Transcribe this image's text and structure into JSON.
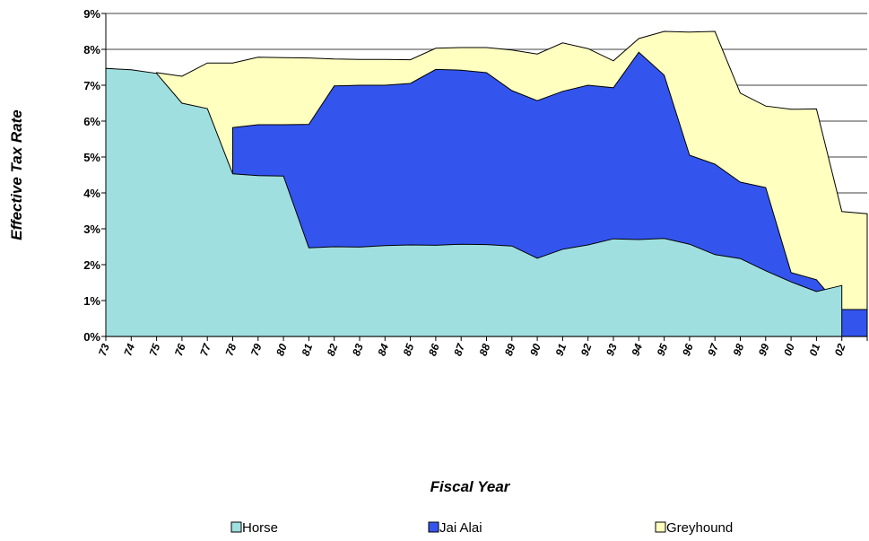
{
  "chart_data": {
    "type": "area",
    "x_label": "Fiscal Year",
    "y_label": "Effective Tax Rate",
    "categories": [
      "73",
      "74",
      "75",
      "76",
      "77",
      "78",
      "79",
      "80",
      "81",
      "82",
      "83",
      "84",
      "85",
      "86",
      "87",
      "88",
      "89",
      "90",
      "91",
      "92",
      "93",
      "94",
      "95",
      "96",
      "97",
      "98",
      "99",
      "00",
      "01",
      "02",
      null
    ],
    "series": [
      {
        "name": "Greyhound",
        "color": "#ffffc0",
        "values": [
          null,
          null,
          7.35,
          7.25,
          7.62,
          7.62,
          7.78,
          7.77,
          7.76,
          7.73,
          7.72,
          7.72,
          7.71,
          8.03,
          8.05,
          8.05,
          7.98,
          7.87,
          8.18,
          8.02,
          7.68,
          8.3,
          8.5,
          8.48,
          8.5,
          6.78,
          6.42,
          6.33,
          6.34,
          3.48,
          3.42
        ]
      },
      {
        "name": "Jai Alai",
        "color": "#3355ee",
        "values": [
          null,
          null,
          null,
          null,
          null,
          5.82,
          5.9,
          5.9,
          5.91,
          6.98,
          7.0,
          7.0,
          7.05,
          7.44,
          7.42,
          7.35,
          6.85,
          6.57,
          6.83,
          7.0,
          6.93,
          7.92,
          7.28,
          5.05,
          4.8,
          4.3,
          4.15,
          1.78,
          1.58,
          0.75,
          0.75
        ]
      },
      {
        "name": "Horse",
        "color": "#a0dfdf",
        "values": [
          7.47,
          7.43,
          7.33,
          6.5,
          6.35,
          4.53,
          4.48,
          4.47,
          2.47,
          2.5,
          2.49,
          2.53,
          2.55,
          2.54,
          2.57,
          2.56,
          2.52,
          2.18,
          2.43,
          2.55,
          2.72,
          2.7,
          2.73,
          2.57,
          2.28,
          2.17,
          1.83,
          1.52,
          1.25,
          1.42,
          null
        ]
      }
    ],
    "legend_order": [
      2,
      1,
      0
    ],
    "ylim": [
      0,
      9
    ],
    "yticks": [
      {
        "value": 0,
        "label": "0%"
      },
      {
        "value": 1,
        "label": "1%"
      },
      {
        "value": 2,
        "label": "2%"
      },
      {
        "value": 3,
        "label": "3%"
      },
      {
        "value": 4,
        "label": "4%"
      },
      {
        "value": 5,
        "label": "5%"
      },
      {
        "value": 6,
        "label": "6%"
      },
      {
        "value": 7,
        "label": "7%"
      },
      {
        "value": 8,
        "label": "8%"
      },
      {
        "value": 9,
        "label": "9%"
      }
    ],
    "grid": true
  }
}
